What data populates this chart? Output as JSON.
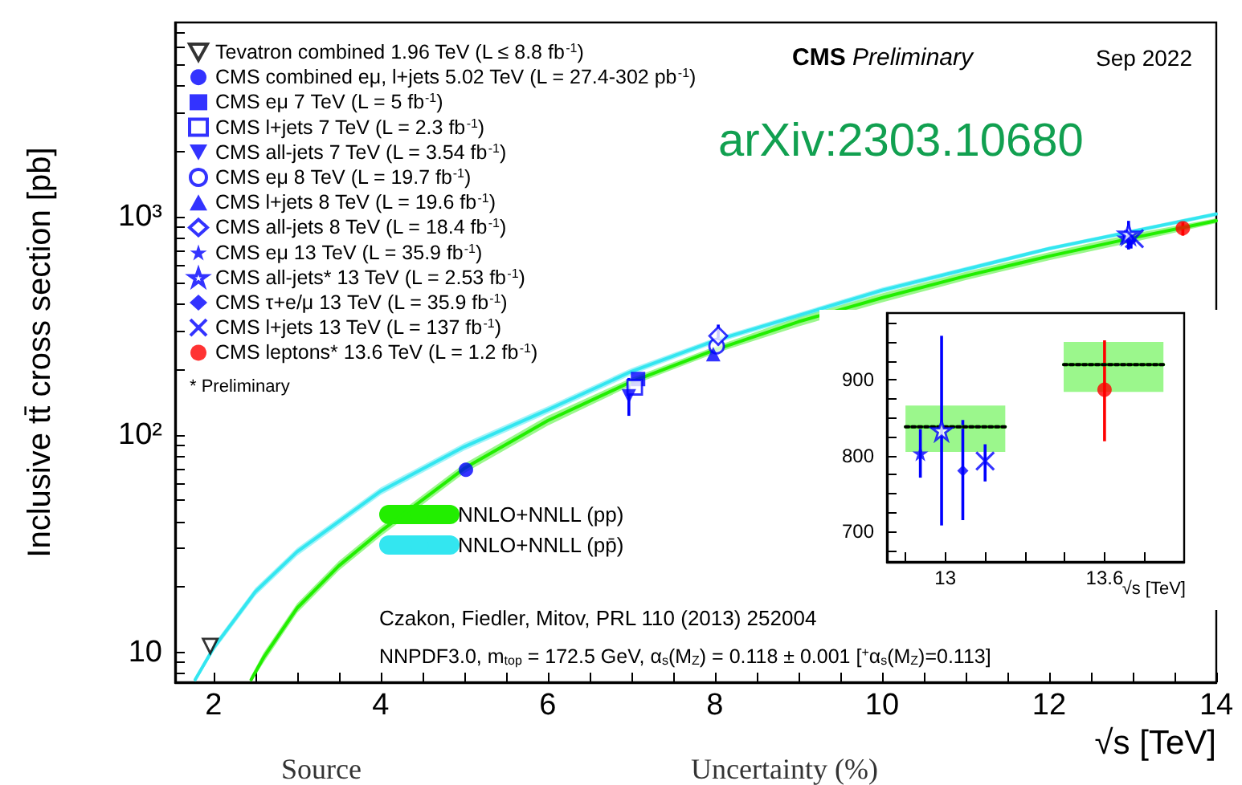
{
  "chart_data": [
    {
      "type": "scatter",
      "xlabel": "√s [TeV]",
      "ylabel": "Inclusive tt̄ cross section [pb]",
      "xlim": [
        1.54,
        14
      ],
      "ylim": [
        7.3,
        7800
      ],
      "log": "y",
      "xticks": [
        {
          "value": 2,
          "label": "2"
        },
        {
          "value": 2.5,
          "label": null
        },
        {
          "value": 3,
          "label": null
        },
        {
          "value": 3.5,
          "label": null
        },
        {
          "value": 4,
          "label": "4"
        },
        {
          "value": 4.5,
          "label": null
        },
        {
          "value": 5,
          "label": null
        },
        {
          "value": 5.5,
          "label": null
        },
        {
          "value": 6,
          "label": "6"
        },
        {
          "value": 6.5,
          "label": null
        },
        {
          "value": 7,
          "label": null
        },
        {
          "value": 7.5,
          "label": null
        },
        {
          "value": 8,
          "label": "8"
        },
        {
          "value": 8.5,
          "label": null
        },
        {
          "value": 9,
          "label": null
        },
        {
          "value": 9.5,
          "label": null
        },
        {
          "value": 10,
          "label": "10"
        },
        {
          "value": 10.5,
          "label": null
        },
        {
          "value": 11,
          "label": null
        },
        {
          "value": 11.5,
          "label": null
        },
        {
          "value": 12,
          "label": "12"
        },
        {
          "value": 12.5,
          "label": null
        },
        {
          "value": 13,
          "label": null
        },
        {
          "value": 13.5,
          "label": null
        },
        {
          "value": 14,
          "label": "14"
        }
      ],
      "yticks": [
        {
          "value": 8,
          "label": null
        },
        {
          "value": 9,
          "label": null
        },
        10,
        {
          "value": 20,
          "label": null
        },
        {
          "value": 30,
          "label": null
        },
        {
          "value": 40,
          "label": null
        },
        {
          "value": 50,
          "label": null
        },
        {
          "value": 60,
          "label": null
        },
        {
          "value": 70,
          "label": null
        },
        {
          "value": 80,
          "label": null
        },
        {
          "value": 90,
          "label": null
        },
        {
          "value": 100,
          "label": "10²"
        },
        {
          "value": 200,
          "label": null
        },
        {
          "value": 300,
          "label": null
        },
        {
          "value": 400,
          "label": null
        },
        {
          "value": 500,
          "label": null
        },
        {
          "value": 600,
          "label": null
        },
        {
          "value": 700,
          "label": null
        },
        {
          "value": 800,
          "label": null
        },
        {
          "value": 900,
          "label": null
        },
        {
          "value": 1000,
          "label": "10³"
        },
        {
          "value": 2000,
          "label": null
        },
        {
          "value": 3000,
          "label": null
        },
        {
          "value": 4000,
          "label": null
        },
        {
          "value": 5000,
          "label": null
        },
        {
          "value": 6000,
          "label": null
        },
        {
          "value": 7000,
          "label": null
        }
      ],
      "legend": "top left",
      "annotations": [
        "CMS Preliminary",
        "Sep 2022",
        "arXiv:2303.10680",
        "* Preliminary",
        "Czakon, Fiedler, Mitov, PRL 110 (2013) 252004",
        "NNPDF3.0, m$_{top}$ = 172.5 GeV, α$_{s}$(M$_{Z}$) = 0.118 ± 0.001 [$^{+}$α$_{s}$(M$_{Z}$)=0.113]",
        "Source",
        "Uncertainty (%)"
      ],
      "series": [
        {
          "name": "Tevatron combined 1.96 TeV (L ≤ 8.8 fb$^{-1}$)",
          "color": "#000000",
          "marker": "triangle-down-open",
          "x": [
            1.96
          ],
          "values": [
            10.7
          ]
        },
        {
          "name": "CMS combined eμ, l+jets 5.02 TeV (L = 27.4-302 pb$^{-1}$)",
          "color": "#0000ff",
          "marker": "circle",
          "x": [
            5.02
          ],
          "values": [
            69
          ]
        },
        {
          "name": "CMS eμ 7 TeV (L = 5 fb$^{-1}$)",
          "color": "#0000ff",
          "marker": "square",
          "x": [
            7.08
          ],
          "values": [
            180
          ]
        },
        {
          "name": "CMS l+jets 7 TeV (L = 2.3 fb$^{-1}$)",
          "color": "#0000ff",
          "marker": "square-open",
          "x": [
            7.04
          ],
          "values": [
            165
          ]
        },
        {
          "name": "CMS all-jets 7 TeV (L = 3.54 fb$^{-1}$)",
          "color": "#0000ff",
          "marker": "triangle-down",
          "x": [
            6.97
          ],
          "values": [
            150
          ],
          "errors": [
            [
              122,
              182
            ]
          ]
        },
        {
          "name": "CMS eμ 8 TeV (L = 19.7 fb$^{-1}$)",
          "color": "#0000ff",
          "marker": "circle-open",
          "x": [
            8.02
          ],
          "values": [
            255
          ]
        },
        {
          "name": "CMS l+jets 8 TeV (L = 19.6 fb$^{-1}$)",
          "color": "#0000ff",
          "marker": "triangle",
          "x": [
            7.98
          ],
          "values": [
            234
          ]
        },
        {
          "name": "CMS all-jets 8 TeV (L = 18.4 fb$^{-1}$)",
          "color": "#0000ff",
          "marker": "diamond-open",
          "x": [
            8.04
          ],
          "values": [
            284
          ],
          "errors": [
            [
              255,
              320
            ]
          ]
        },
        {
          "name": "CMS eμ 13 TeV (L = 35.9 fb$^{-1}$)",
          "color": "#0000ff",
          "marker": "star",
          "x": [
            12.9
          ],
          "values": [
            803
          ],
          "errors": [
            [
              771,
              835
            ]
          ]
        },
        {
          "name": "CMS all-jets* 13 TeV (L = 2.53 fb$^{-1}$)",
          "color": "#0000ff",
          "marker": "star-open",
          "x": [
            12.95
          ],
          "values": [
            833
          ],
          "errors": [
            [
              708,
              958
            ]
          ]
        },
        {
          "name": "CMS τ+e/μ 13 TeV (L = 35.9 fb$^{-1}$)",
          "color": "#0000ff",
          "marker": "diamond",
          "x": [
            12.98
          ],
          "values": [
            780
          ],
          "errors": [
            [
              715,
              847
            ]
          ]
        },
        {
          "name": "CMS l+jets 13 TeV (L = 137 fb$^{-1}$)",
          "color": "#0000ff",
          "marker": "cross",
          "x": [
            13.02
          ],
          "values": [
            793
          ],
          "errors": [
            [
              766,
              815
            ]
          ]
        },
        {
          "name": "CMS leptons* 13.6 TeV (L = 1.2 fb$^{-1}$)",
          "color": "#ff0000",
          "marker": "circle",
          "x": [
            13.6
          ],
          "values": [
            887
          ],
          "errors": [
            [
              819,
              952
            ]
          ]
        },
        {
          "type": "line",
          "name": "NNLO+NNLL (pp)",
          "color": "#22ee00",
          "line_style": "solid",
          "marker": "none",
          "x": [
            2.45,
            2.6,
            3,
            3.5,
            4,
            5,
            6,
            7,
            8,
            9,
            10,
            11,
            12,
            13,
            14
          ],
          "values": [
            7.5,
            9.5,
            16,
            25,
            36,
            70,
            116,
            175,
            245,
            330,
            425,
            535,
            660,
            800,
            960
          ],
          "lower": [
            7.3,
            9.0,
            15.2,
            23.8,
            34.2,
            66.5,
            110,
            168,
            236,
            314,
            405,
            512,
            632,
            765,
            935
          ],
          "upper": [
            7.8,
            10,
            16.8,
            26.3,
            37.8,
            73.5,
            122,
            182,
            254,
            347,
            445,
            558,
            688,
            835,
            985
          ]
        },
        {
          "type": "line",
          "name": "NNLO+NNLL (pp̄)",
          "color": "#33e6f0",
          "line_style": "solid",
          "marker": "none",
          "x": [
            1.78,
            2,
            2.5,
            3,
            4,
            5,
            6,
            7,
            8,
            10,
            12,
            14
          ],
          "values": [
            7.5,
            10.5,
            19,
            29,
            55,
            88,
            130,
            195,
            270,
            460,
            715,
            1030
          ],
          "lower": [
            7.3,
            10.1,
            18.2,
            27.8,
            52.8,
            84.5,
            125,
            188,
            262,
            447,
            700,
            1008
          ],
          "upper": [
            7.7,
            10.9,
            19.8,
            30.2,
            57.2,
            91.5,
            135,
            202,
            278,
            473,
            730,
            1052
          ]
        }
      ]
    },
    {
      "type": "scatter",
      "xlabel": "√s [TeV]",
      "xlim": [
        12.78,
        13.9
      ],
      "ylim": [
        660,
        988
      ],
      "xticks": [
        {
          "value": 12.85,
          "label": null
        },
        13,
        {
          "value": 13.15,
          "label": null
        },
        {
          "value": 13.3,
          "label": null
        },
        {
          "value": 13.45,
          "label": null
        },
        13.6,
        {
          "value": 13.75,
          "label": null
        }
      ],
      "yticks": [
        {
          "value": 675,
          "label": null
        },
        700,
        {
          "value": 725,
          "label": null
        },
        {
          "value": 750,
          "label": null
        },
        {
          "value": 775,
          "label": null
        },
        800,
        {
          "value": 825,
          "label": null
        },
        {
          "value": 850,
          "label": null
        },
        {
          "value": 875,
          "label": null
        },
        900,
        {
          "value": 925,
          "label": null
        },
        {
          "value": 950,
          "label": null
        },
        {
          "value": 975,
          "label": null
        }
      ],
      "series": [
        {
          "type": "line",
          "color": "#22ee00",
          "line_style": "solid",
          "marker": "none",
          "x": [
            12.85,
            13.226
          ],
          "values": [
            838,
            838
          ],
          "lower": [
            805,
            805
          ],
          "upper": [
            866,
            866
          ]
        },
        {
          "type": "line",
          "color": "#22ee00",
          "line_style": "solid",
          "marker": "none",
          "x": [
            13.446,
            13.822
          ],
          "values": [
            920,
            920
          ],
          "lower": [
            884,
            884
          ],
          "upper": [
            950,
            950
          ]
        },
        {
          "type": "line",
          "color": "#000000",
          "line_style": "dotted",
          "marker": "none",
          "x": [
            12.85,
            13.226
          ],
          "values": [
            838,
            838
          ]
        },
        {
          "type": "line",
          "color": "#000000",
          "line_style": "dotted",
          "marker": "none",
          "x": [
            13.446,
            13.822
          ],
          "values": [
            920,
            920
          ]
        },
        {
          "color": "#0000ff",
          "marker": "star",
          "x": [
            12.906
          ],
          "values": [
            803
          ],
          "errors": [
            [
              771,
              835
            ]
          ]
        },
        {
          "color": "#0000ff",
          "marker": "star-open",
          "x": [
            12.986
          ],
          "values": [
            833
          ],
          "errors": [
            [
              708,
              958
            ]
          ]
        },
        {
          "color": "#0000ff",
          "marker": "diamond",
          "x": [
            13.066
          ],
          "values": [
            780
          ],
          "errors": [
            [
              715,
              847
            ]
          ]
        },
        {
          "color": "#0000ff",
          "marker": "cross",
          "x": [
            13.15
          ],
          "values": [
            793
          ],
          "errors": [
            [
              766,
              815
            ]
          ]
        },
        {
          "color": "#ff0000",
          "marker": "circle",
          "x": [
            13.6
          ],
          "values": [
            887
          ],
          "errors": [
            [
              819,
              952
            ]
          ]
        }
      ]
    }
  ]
}
